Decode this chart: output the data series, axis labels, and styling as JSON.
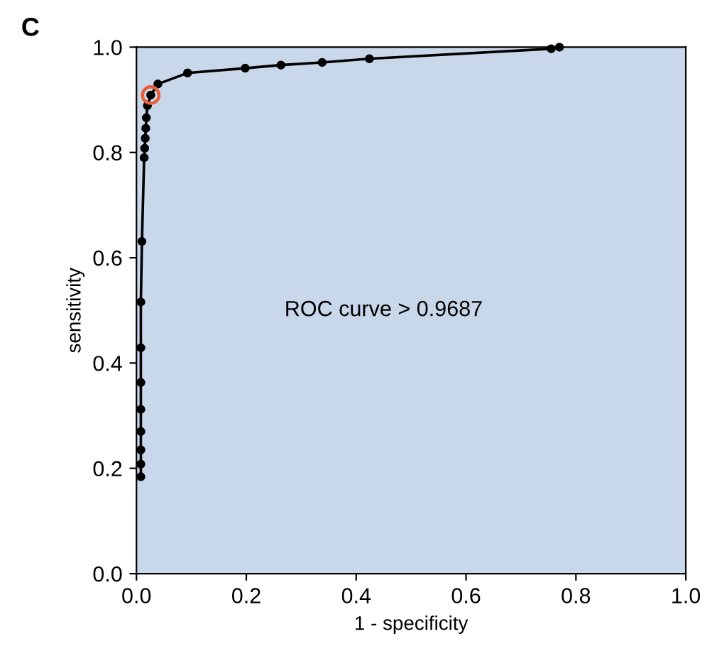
{
  "chart_data": {
    "type": "line",
    "xlabel": "1 - specificity",
    "ylabel": "sensitivity",
    "annotations": [
      "C",
      "ROC curve > 0.9687"
    ],
    "series": [
      {
        "color": "#000000",
        "marker": "circle",
        "x": [
          0.008,
          0.008,
          0.008,
          0.008,
          0.008,
          0.008,
          0.008,
          0.008,
          0.01,
          0.014,
          0.015,
          0.016,
          0.017,
          0.018,
          0.02,
          0.026,
          0.039,
          0.093,
          0.198,
          0.263,
          0.338,
          0.424,
          0.755,
          0.77
        ],
        "values": [
          0.184,
          0.208,
          0.235,
          0.27,
          0.312,
          0.363,
          0.429,
          0.516,
          0.631,
          0.79,
          0.808,
          0.827,
          0.846,
          0.866,
          0.889,
          0.909,
          0.93,
          0.951,
          0.96,
          0.966,
          0.971,
          0.978,
          0.997,
          1.0
        ]
      },
      {
        "type": "scatter",
        "color": "#e8603a",
        "marker": "circle",
        "x": [
          0.026
        ],
        "values": [
          0.909
        ]
      }
    ],
    "xlim": [
      0,
      1
    ],
    "ylim": [
      0,
      1
    ],
    "xticks": [
      {
        "value": 0,
        "label": "0.0"
      },
      {
        "value": 0.2,
        "label": "0.2"
      },
      {
        "value": 0.4,
        "label": "0.4"
      },
      {
        "value": 0.6,
        "label": "0.6"
      },
      {
        "value": 0.8,
        "label": "0.8"
      },
      {
        "value": 1,
        "label": "1.0"
      }
    ],
    "yticks": [
      {
        "value": 0,
        "label": "0.0"
      },
      {
        "value": 0.2,
        "label": "0.2"
      },
      {
        "value": 0.4,
        "label": "0.4"
      },
      {
        "value": 0.6,
        "label": "0.6"
      },
      {
        "value": 0.8,
        "label": "0.8"
      },
      {
        "value": 1,
        "label": "1.0"
      }
    ],
    "grid": false
  }
}
